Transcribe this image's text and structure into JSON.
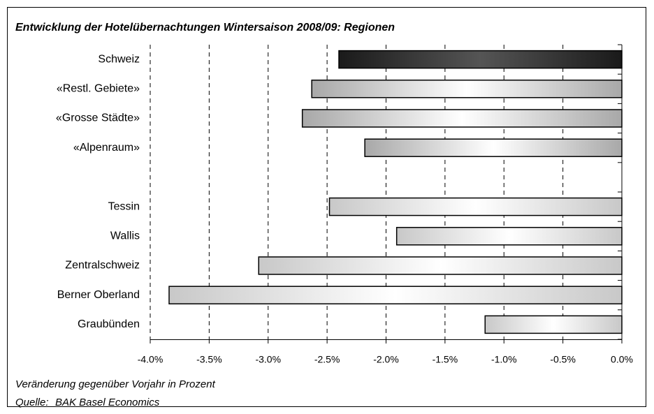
{
  "chart_data": {
    "type": "bar",
    "orientation": "horizontal",
    "title": "Entwicklung der Hotelübernachtungen Wintersaison 2008/09: Regionen",
    "categories": [
      "Schweiz",
      "«Restl. Gebiete»",
      "«Grosse Städte»",
      "«Alpenraum»",
      null,
      "Tessin",
      "Wallis",
      "Zentralschweiz",
      "Berner Oberland",
      "Graubünden"
    ],
    "values": [
      -2.4,
      -2.63,
      -2.71,
      -2.18,
      null,
      -2.48,
      -1.91,
      -3.08,
      -3.84,
      -1.16
    ],
    "colors": [
      "#1a1a1a",
      "#a8a8a8",
      "#a8a8a8",
      "#a8a8a8",
      null,
      "#c8c8c8",
      "#c8c8c8",
      "#c8c8c8",
      "#c8c8c8",
      "#c8c8c8"
    ],
    "xlim": [
      -4,
      0
    ],
    "xticks": [
      {
        "value": -4,
        "label": "-4.0%"
      },
      {
        "value": -3.5,
        "label": "-3.5%"
      },
      {
        "value": -3,
        "label": "-3.0%"
      },
      {
        "value": -2.5,
        "label": "-2.5%"
      },
      {
        "value": -2,
        "label": "-2.0%"
      },
      {
        "value": -1.5,
        "label": "-1.5%"
      },
      {
        "value": -1,
        "label": "-1.0%"
      },
      {
        "value": -0.5,
        "label": "-0.5%"
      },
      {
        "value": 0,
        "label": "0.0%"
      }
    ],
    "grid": true,
    "x_label": "Veränderung gegenüber Vorjahr in Prozent",
    "source_label": "Quelle:",
    "source": "BAK Basel Economics"
  }
}
